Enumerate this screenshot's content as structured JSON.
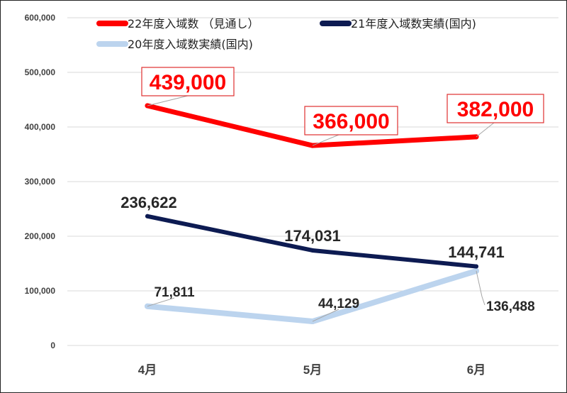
{
  "chart_data": {
    "type": "line",
    "categories": [
      "4月",
      "5月",
      "6月"
    ],
    "ylim": [
      0,
      600000
    ],
    "yticks": [
      "0",
      "100,000",
      "200,000",
      "300,000",
      "400,000",
      "500,000",
      "600,000"
    ],
    "ytick_values": [
      0,
      100000,
      200000,
      300000,
      400000,
      500000,
      600000
    ],
    "grid": true,
    "legend_placement": "top",
    "series": [
      {
        "name": "22年度入域数 （見通し）",
        "color": "#ff0000",
        "values": [
          439000,
          366000,
          382000
        ],
        "labels": [
          "439,000",
          "366,000",
          "382,000"
        ]
      },
      {
        "name": "21年度入域数実績(国内)",
        "color": "#0d1b52",
        "values": [
          236622,
          174031,
          144741
        ],
        "labels": [
          "236,622",
          "174,031",
          "144,741"
        ]
      },
      {
        "name": "20年度入域数実績(国内)",
        "color": "#bcd4ee",
        "values": [
          71811,
          44129,
          136488
        ],
        "labels": [
          "71,811",
          "44,129",
          "136,488"
        ]
      }
    ]
  }
}
